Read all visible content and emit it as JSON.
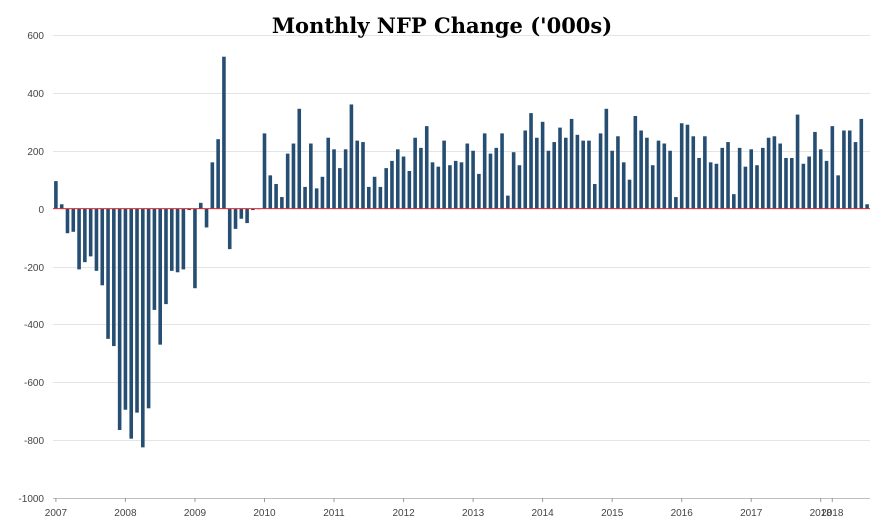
{
  "chart_data": {
    "type": "bar",
    "title": "Monthly NFP Change ('000s)",
    "xlabel": "",
    "ylabel": "",
    "ylim": [
      -1000,
      600
    ],
    "yticks": [
      600,
      400,
      200,
      0,
      -200,
      -400,
      -600,
      -800,
      -1000
    ],
    "ytick_labels": [
      "600",
      "400",
      "200",
      "0",
      "-200",
      "-400",
      "-600",
      "-800",
      "-1000"
    ],
    "xtick_labels": [
      "2007",
      "2008",
      "2009",
      "2010",
      "2011",
      "2012",
      "2013",
      "2014",
      "2015",
      "2016",
      "2017",
      "2018",
      "2018"
    ],
    "grid": true,
    "start": "2007-01",
    "end": "2018-03",
    "colors": {
      "bar": "#254e72",
      "zero_line": "#e8262b",
      "grid": "#e4e4e4"
    },
    "values": [
      95,
      15,
      -85,
      -80,
      -210,
      -185,
      -165,
      -215,
      -265,
      -450,
      -475,
      -765,
      -695,
      -795,
      -705,
      -825,
      -690,
      -350,
      -470,
      -330,
      -215,
      -220,
      -210,
      -5,
      -275,
      20,
      -65,
      160,
      240,
      525,
      -140,
      -70,
      -35,
      -50,
      -5,
      0,
      260,
      115,
      85,
      40,
      190,
      225,
      345,
      75,
      225,
      70,
      110,
      245,
      205,
      140,
      205,
      360,
      235,
      230,
      75,
      110,
      75,
      140,
      165,
      205,
      180,
      130,
      245,
      210,
      285,
      160,
      145,
      235,
      150,
      165,
      160,
      225,
      200,
      120,
      260,
      190,
      210,
      260,
      45,
      195,
      150,
      270,
      330,
      245,
      300,
      200,
      230,
      280,
      245,
      310,
      255,
      235,
      235,
      85,
      260,
      345,
      200,
      250,
      160,
      100,
      320,
      270,
      245,
      150,
      235,
      225,
      200,
      40,
      295,
      290,
      250,
      175,
      250,
      160,
      155,
      210,
      230,
      50,
      210,
      145,
      205,
      150,
      210,
      245,
      250,
      225,
      175,
      175,
      325,
      155,
      180,
      265,
      205,
      165,
      285,
      115,
      270,
      270,
      230,
      310,
      15
    ]
  }
}
